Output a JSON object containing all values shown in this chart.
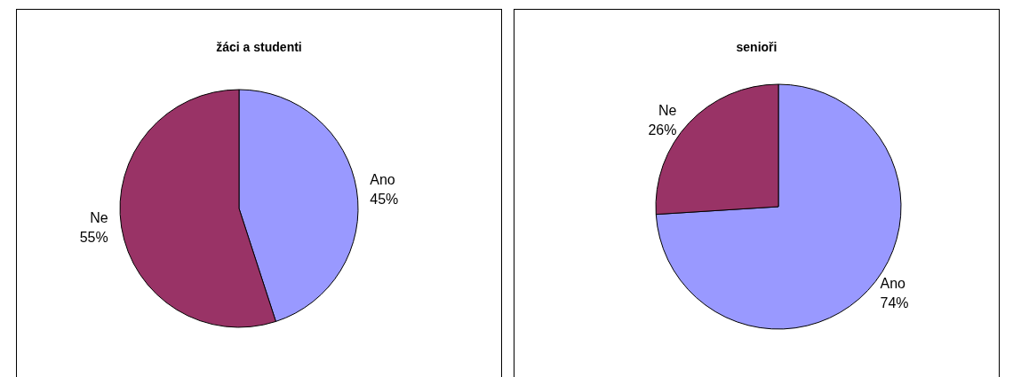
{
  "chart_data": [
    {
      "type": "pie",
      "title": "žáci a studenti",
      "categories": [
        "Ano",
        "Ne"
      ],
      "values": [
        45,
        55
      ],
      "colors": [
        "#9999ff",
        "#993366"
      ],
      "value_labels": [
        "45%",
        "55%"
      ]
    },
    {
      "type": "pie",
      "title": "senioři",
      "categories": [
        "Ano",
        "Ne"
      ],
      "values": [
        74,
        26
      ],
      "colors": [
        "#9999ff",
        "#993366"
      ],
      "value_labels": [
        "74%",
        "26%"
      ]
    }
  ]
}
